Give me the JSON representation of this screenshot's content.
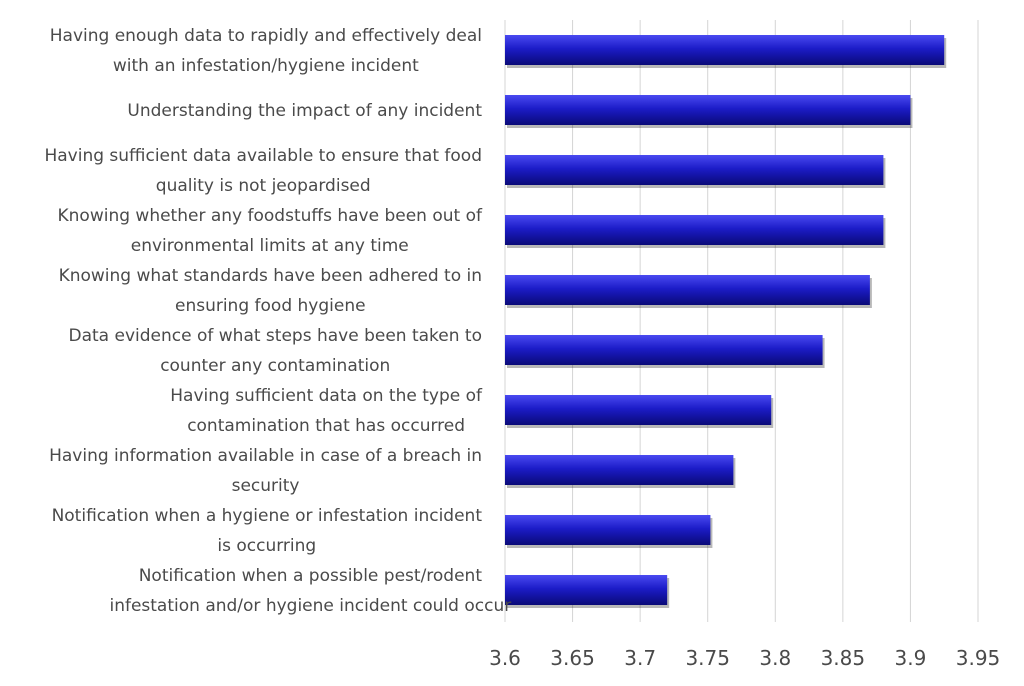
{
  "chart_data": {
    "type": "bar",
    "orientation": "horizontal",
    "title": "",
    "xlabel": "",
    "ylabel": "",
    "xlim": [
      3.6,
      3.95
    ],
    "ticks": [
      "3.6",
      "3.65",
      "3.7",
      "3.75",
      "3.8",
      "3.85",
      "3.9",
      "3.95"
    ],
    "grid": true,
    "bar_color": "#1a1ab8",
    "categories": [
      [
        "Having enough data to rapidly and effectively deal",
        "with an infestation/hygiene incident"
      ],
      [
        "Understanding the impact of any incident"
      ],
      [
        "Having sufficient data available to ensure that food",
        "quality is not jeopardised"
      ],
      [
        "Knowing whether any foodstuffs have been out of",
        "environmental limits at any time"
      ],
      [
        "Knowing what standards have been adhered to in",
        "ensuring food hygiene"
      ],
      [
        "Data evidence of what steps have been taken to",
        "counter any contamination"
      ],
      [
        "Having sufficient data on the type of",
        "contamination that has occurred"
      ],
      [
        "Having information available in case of a breach in",
        "security"
      ],
      [
        "Notification when a hygiene or infestation incident",
        "is occurring"
      ],
      [
        "Notification when a possible pest/rodent",
        "infestation and/or hygiene incident could occur"
      ]
    ],
    "values": [
      3.925,
      3.9,
      3.88,
      3.88,
      3.87,
      3.835,
      3.797,
      3.769,
      3.752,
      3.72
    ]
  }
}
